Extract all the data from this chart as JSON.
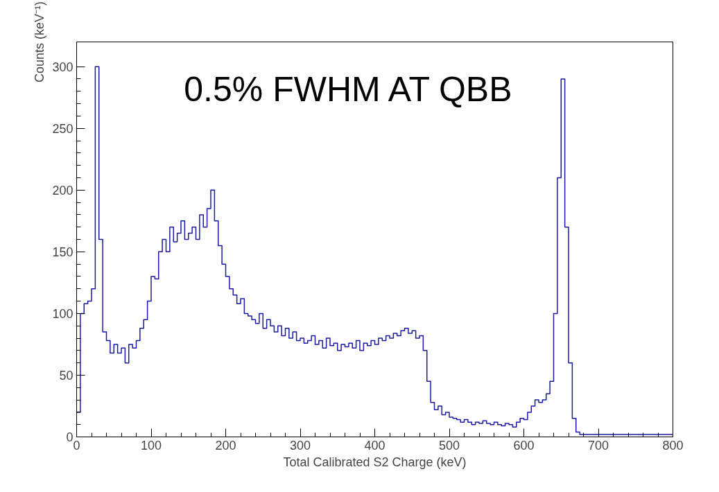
{
  "chart_data": {
    "type": "histogram",
    "color": "#1a1aa6",
    "xlabel": "Total Calibrated S2 Charge (keV)",
    "ylabel": "Counts (keV⁻¹)",
    "annotations": [
      "0.5% FWHM AT QBB"
    ],
    "bins": [
      0,
      5,
      10,
      15,
      20,
      25,
      30,
      35,
      40,
      45,
      50,
      55,
      60,
      65,
      70,
      75,
      80,
      85,
      90,
      95,
      100,
      105,
      110,
      115,
      120,
      125,
      130,
      135,
      140,
      145,
      150,
      155,
      160,
      165,
      170,
      175,
      180,
      185,
      190,
      195,
      200,
      205,
      210,
      215,
      220,
      225,
      230,
      235,
      240,
      245,
      250,
      255,
      260,
      265,
      270,
      275,
      280,
      285,
      290,
      295,
      300,
      305,
      310,
      315,
      320,
      325,
      330,
      335,
      340,
      345,
      350,
      355,
      360,
      365,
      370,
      375,
      380,
      385,
      390,
      395,
      400,
      405,
      410,
      415,
      420,
      425,
      430,
      435,
      440,
      445,
      450,
      455,
      460,
      465,
      470,
      475,
      480,
      485,
      490,
      495,
      500,
      505,
      510,
      515,
      520,
      525,
      530,
      535,
      540,
      545,
      550,
      555,
      560,
      565,
      570,
      575,
      580,
      585,
      590,
      595,
      600,
      605,
      610,
      615,
      620,
      625,
      630,
      635,
      640,
      645,
      650,
      655,
      660,
      665,
      670,
      675,
      680,
      685,
      690,
      695,
      700,
      705,
      710,
      715,
      720,
      725,
      730,
      735,
      740,
      745,
      750,
      755,
      760,
      765,
      770,
      775,
      780,
      785,
      790,
      795,
      800
    ],
    "values": [
      20,
      100,
      108,
      110,
      120,
      300,
      160,
      85,
      78,
      68,
      75,
      68,
      72,
      60,
      75,
      72,
      78,
      88,
      95,
      110,
      130,
      128,
      150,
      160,
      150,
      170,
      158,
      165,
      175,
      160,
      165,
      170,
      160,
      180,
      170,
      185,
      200,
      175,
      155,
      140,
      130,
      120,
      115,
      108,
      112,
      100,
      98,
      95,
      92,
      100,
      88,
      95,
      90,
      85,
      90,
      82,
      88,
      80,
      85,
      78,
      80,
      76,
      78,
      82,
      75,
      78,
      72,
      80,
      74,
      76,
      70,
      75,
      73,
      76,
      72,
      78,
      70,
      76,
      74,
      78,
      75,
      80,
      78,
      82,
      80,
      84,
      82,
      86,
      88,
      84,
      86,
      80,
      82,
      70,
      45,
      28,
      22,
      25,
      18,
      20,
      16,
      15,
      14,
      12,
      14,
      12,
      10,
      12,
      11,
      13,
      11,
      10,
      12,
      10,
      9,
      11,
      10,
      8,
      12,
      15,
      14,
      20,
      25,
      30,
      28,
      30,
      35,
      45,
      100,
      210,
      290,
      170,
      60,
      15,
      4,
      2,
      2,
      2,
      2,
      2,
      2,
      2,
      2,
      2,
      2,
      2,
      2,
      2,
      2,
      2,
      2,
      2,
      2,
      2,
      2,
      2,
      2,
      2,
      2,
      2
    ],
    "xlim": [
      0,
      800
    ],
    "ylim": [
      0,
      320
    ],
    "xticks": [
      0,
      100,
      200,
      300,
      400,
      500,
      600,
      700,
      800
    ],
    "yticks": [
      0,
      50,
      100,
      150,
      200,
      250,
      300
    ]
  }
}
